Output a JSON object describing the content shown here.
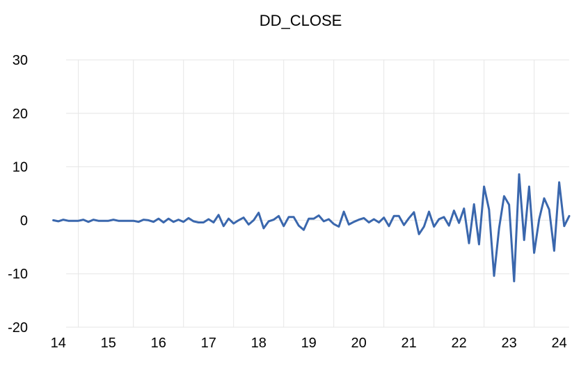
{
  "chart_data": {
    "type": "line",
    "title": "DD_CLOSE",
    "xlabel": "",
    "ylabel": "",
    "xlim": [
      13.6,
      24.2
    ],
    "ylim": [
      -20,
      30
    ],
    "yticks": [
      30,
      20,
      10,
      0,
      -10,
      -20
    ],
    "xticks": [
      14,
      15,
      16,
      17,
      18,
      19,
      20,
      21,
      22,
      23,
      24
    ],
    "xgrid": [
      14.4,
      15.5,
      16.5,
      17.5,
      18.5,
      19.5,
      20.5,
      21.5,
      22.5,
      23.5
    ],
    "grid": true,
    "legend": "none",
    "line_color": "#3a67ad",
    "series": [
      {
        "points": [
          [
            13.9,
            0.0
          ],
          [
            14.0,
            -0.2
          ],
          [
            14.1,
            0.1
          ],
          [
            14.2,
            -0.1
          ],
          [
            14.3,
            -0.1
          ],
          [
            14.4,
            -0.1
          ],
          [
            14.5,
            0.1
          ],
          [
            14.6,
            -0.3
          ],
          [
            14.7,
            0.1
          ],
          [
            14.8,
            -0.1
          ],
          [
            14.9,
            -0.1
          ],
          [
            15.0,
            -0.1
          ],
          [
            15.1,
            0.1
          ],
          [
            15.2,
            -0.1
          ],
          [
            15.3,
            -0.1
          ],
          [
            15.4,
            -0.1
          ],
          [
            15.5,
            -0.1
          ],
          [
            15.6,
            -0.3
          ],
          [
            15.7,
            0.1
          ],
          [
            15.8,
            0.0
          ],
          [
            15.9,
            -0.3
          ],
          [
            16.0,
            0.3
          ],
          [
            16.1,
            -0.4
          ],
          [
            16.2,
            0.3
          ],
          [
            16.3,
            -0.3
          ],
          [
            16.4,
            0.1
          ],
          [
            16.5,
            -0.3
          ],
          [
            16.6,
            0.4
          ],
          [
            16.7,
            -0.2
          ],
          [
            16.8,
            -0.4
          ],
          [
            16.9,
            -0.4
          ],
          [
            17.0,
            0.2
          ],
          [
            17.1,
            -0.4
          ],
          [
            17.2,
            1.0
          ],
          [
            17.3,
            -1.1
          ],
          [
            17.4,
            0.3
          ],
          [
            17.5,
            -0.6
          ],
          [
            17.6,
            0.0
          ],
          [
            17.7,
            0.5
          ],
          [
            17.8,
            -0.8
          ],
          [
            17.9,
            0.0
          ],
          [
            18.0,
            1.4
          ],
          [
            18.1,
            -1.5
          ],
          [
            18.2,
            -0.2
          ],
          [
            18.3,
            0.1
          ],
          [
            18.4,
            0.8
          ],
          [
            18.5,
            -1.1
          ],
          [
            18.6,
            0.6
          ],
          [
            18.7,
            0.6
          ],
          [
            18.8,
            -1.0
          ],
          [
            18.9,
            -1.8
          ],
          [
            19.0,
            0.3
          ],
          [
            19.1,
            0.3
          ],
          [
            19.2,
            0.9
          ],
          [
            19.3,
            -0.2
          ],
          [
            19.4,
            0.2
          ],
          [
            19.5,
            -0.7
          ],
          [
            19.6,
            -1.2
          ],
          [
            19.7,
            1.6
          ],
          [
            19.8,
            -0.8
          ],
          [
            19.9,
            -0.3
          ],
          [
            20.0,
            0.1
          ],
          [
            20.1,
            0.4
          ],
          [
            20.2,
            -0.4
          ],
          [
            20.3,
            0.2
          ],
          [
            20.4,
            -0.4
          ],
          [
            20.5,
            0.5
          ],
          [
            20.6,
            -1.1
          ],
          [
            20.7,
            0.8
          ],
          [
            20.8,
            0.8
          ],
          [
            20.9,
            -0.9
          ],
          [
            21.0,
            0.4
          ],
          [
            21.1,
            1.5
          ],
          [
            21.2,
            -2.6
          ],
          [
            21.3,
            -1.2
          ],
          [
            21.4,
            1.6
          ],
          [
            21.5,
            -1.2
          ],
          [
            21.6,
            0.2
          ],
          [
            21.7,
            0.6
          ],
          [
            21.8,
            -1.0
          ],
          [
            21.9,
            1.8
          ],
          [
            22.0,
            -0.5
          ],
          [
            22.1,
            2.2
          ],
          [
            22.2,
            -4.3
          ],
          [
            22.3,
            3.0
          ],
          [
            22.4,
            -4.5
          ],
          [
            22.5,
            6.3
          ],
          [
            22.6,
            2.0
          ],
          [
            22.7,
            -10.4
          ],
          [
            22.8,
            -1.5
          ],
          [
            22.9,
            4.5
          ],
          [
            23.0,
            2.9
          ],
          [
            23.1,
            -11.4
          ],
          [
            23.2,
            8.6
          ],
          [
            23.3,
            -3.7
          ],
          [
            23.4,
            6.3
          ],
          [
            23.5,
            -6.1
          ],
          [
            23.6,
            0.2
          ],
          [
            23.7,
            4.1
          ],
          [
            23.8,
            2.0
          ],
          [
            23.9,
            -5.7
          ],
          [
            24.0,
            7.1
          ],
          [
            24.1,
            -1.1
          ],
          [
            24.2,
            0.8
          ]
        ]
      }
    ]
  }
}
